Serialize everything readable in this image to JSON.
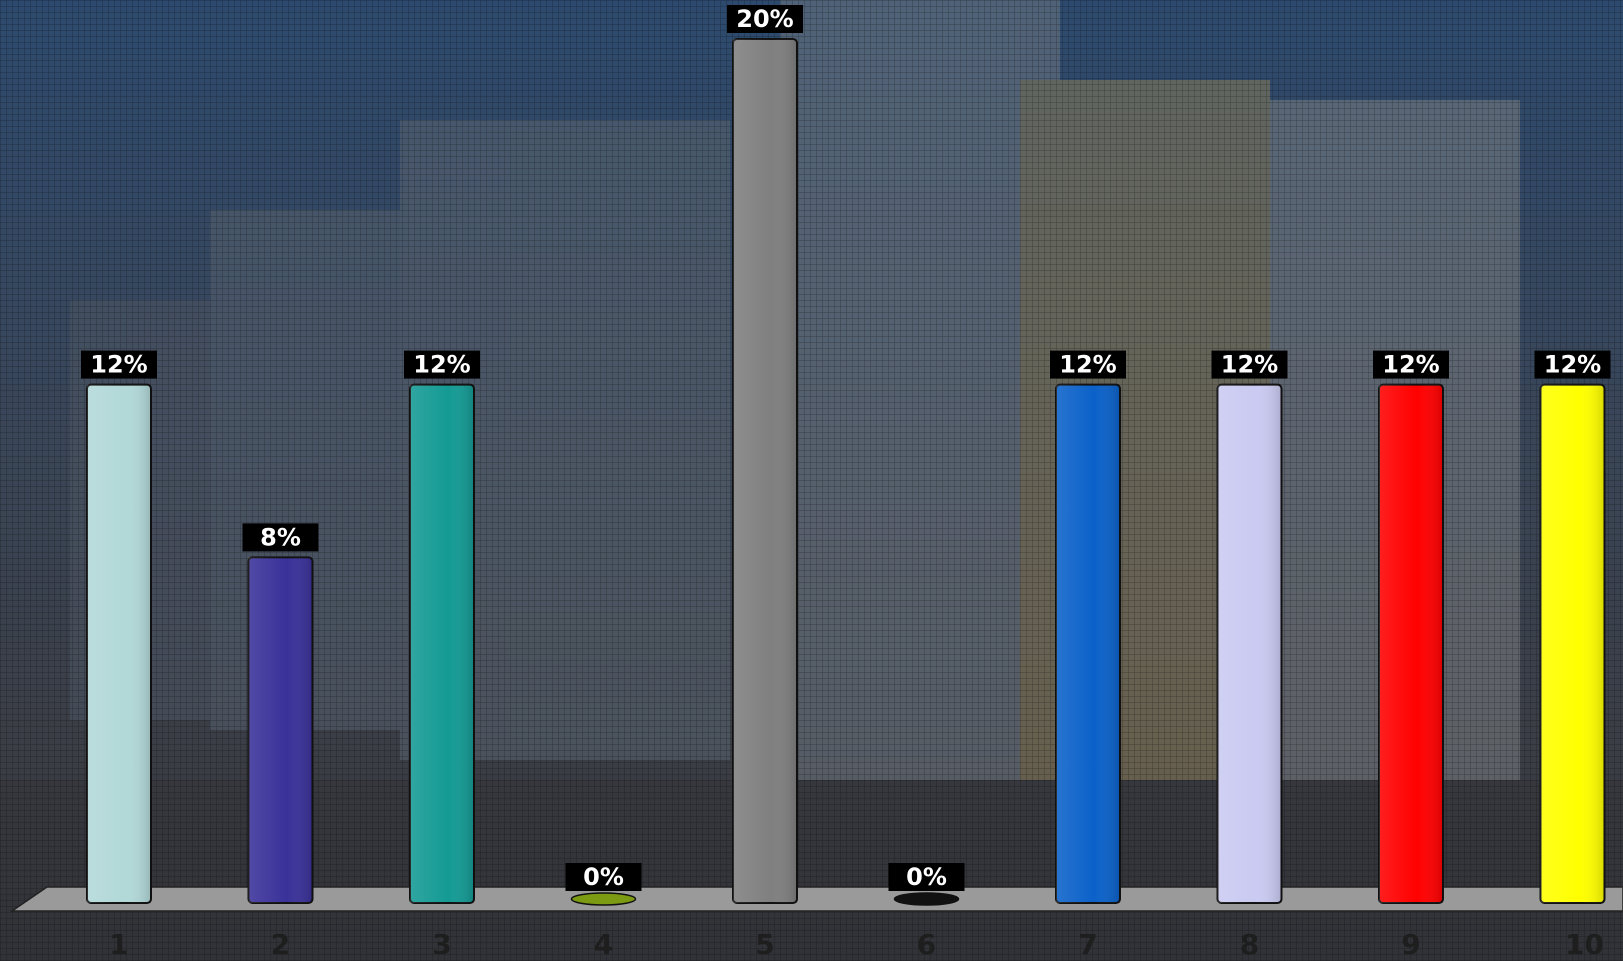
{
  "chart_data": {
    "type": "bar",
    "categories": [
      "1",
      "2",
      "3",
      "4",
      "5",
      "6",
      "7",
      "8",
      "9",
      "10"
    ],
    "values": [
      12,
      8,
      12,
      0,
      20,
      0,
      12,
      12,
      12,
      12
    ],
    "value_labels": [
      "12%",
      "8%",
      "12%",
      "0%",
      "20%",
      "0%",
      "12%",
      "12%",
      "12%",
      "12%"
    ],
    "colors": [
      "#b2d8d8",
      "#3a3199",
      "#149a94",
      "#7c9a12",
      "#7f7f7f",
      "#111111",
      "#0b61c9",
      "#cacaf2",
      "#ff0000",
      "#ffff00"
    ]
  }
}
